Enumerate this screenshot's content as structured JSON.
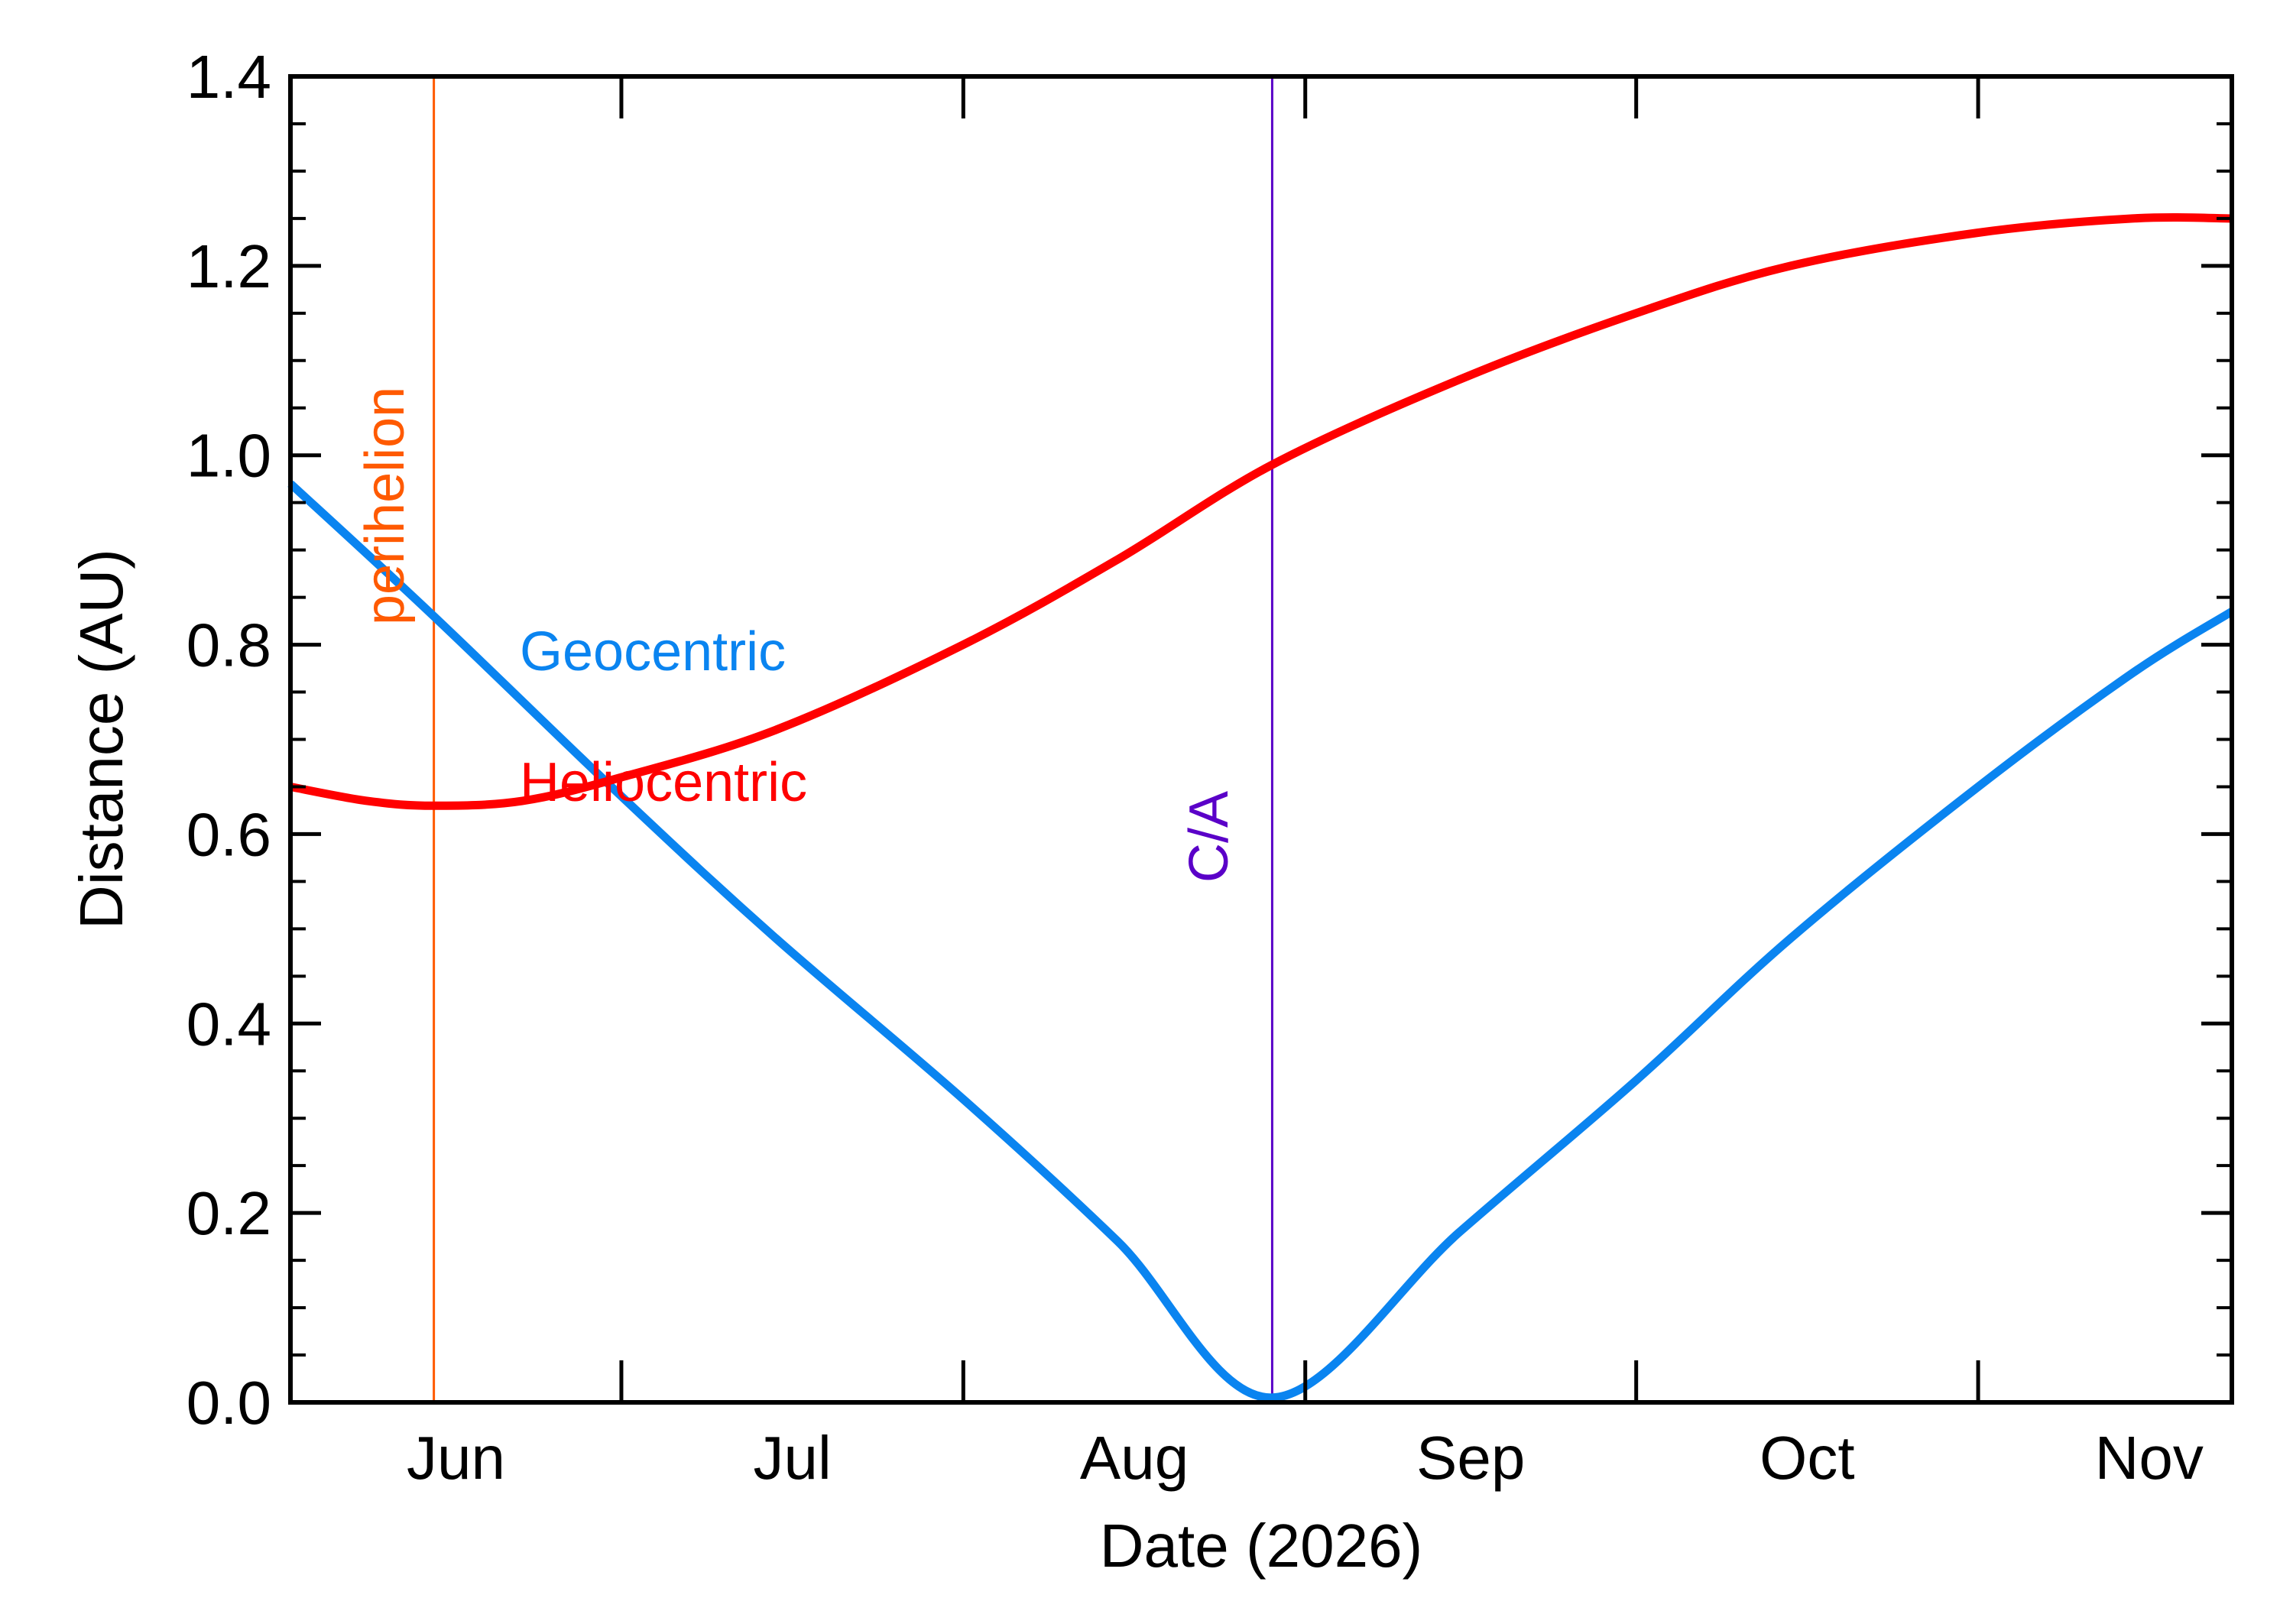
{
  "chart_data": {
    "type": "line",
    "xlabel": "Date (2026)",
    "ylabel": "Distance (AU)",
    "xlim": [
      "2026-06-01",
      "2026-11-24"
    ],
    "ylim": [
      0.0,
      1.4
    ],
    "x_ticks": [
      {
        "date": "2026-06-01",
        "label": "Jun"
      },
      {
        "date": "2026-07-01",
        "label": "Jul"
      },
      {
        "date": "2026-08-01",
        "label": "Aug"
      },
      {
        "date": "2026-09-01",
        "label": "Sep"
      },
      {
        "date": "2026-10-01",
        "label": "Oct"
      },
      {
        "date": "2026-11-01",
        "label": "Nov"
      }
    ],
    "y_ticks": [
      {
        "value": 0.0,
        "label": "0.0"
      },
      {
        "value": 0.2,
        "label": "0.2"
      },
      {
        "value": 0.4,
        "label": "0.4"
      },
      {
        "value": 0.6,
        "label": "0.6"
      },
      {
        "value": 0.8,
        "label": "0.8"
      },
      {
        "value": 1.0,
        "label": "1.0"
      },
      {
        "value": 1.2,
        "label": "1.2"
      },
      {
        "value": 1.4,
        "label": "1.4"
      }
    ],
    "grid": false,
    "series": [
      {
        "name": "Geocentric",
        "color": "#0a84f0",
        "points": [
          {
            "x": "2026-06-01",
            "y": 0.97
          },
          {
            "x": "2026-06-14",
            "y": 0.83
          },
          {
            "x": "2026-07-01",
            "y": 0.64
          },
          {
            "x": "2026-07-15",
            "y": 0.49
          },
          {
            "x": "2026-08-01",
            "y": 0.32
          },
          {
            "x": "2026-08-15",
            "y": 0.17
          },
          {
            "x": "2026-08-29",
            "y": 0.005
          },
          {
            "x": "2026-09-15",
            "y": 0.18
          },
          {
            "x": "2026-10-01",
            "y": 0.34
          },
          {
            "x": "2026-10-15",
            "y": 0.49
          },
          {
            "x": "2026-11-01",
            "y": 0.65
          },
          {
            "x": "2026-11-15",
            "y": 0.77
          },
          {
            "x": "2026-11-24",
            "y": 0.835
          }
        ]
      },
      {
        "name": "Heliocentric",
        "color": "#ff0000",
        "points": [
          {
            "x": "2026-06-01",
            "y": 0.65
          },
          {
            "x": "2026-06-08",
            "y": 0.635
          },
          {
            "x": "2026-06-14",
            "y": 0.63
          },
          {
            "x": "2026-06-22",
            "y": 0.635
          },
          {
            "x": "2026-07-01",
            "y": 0.66
          },
          {
            "x": "2026-07-15",
            "y": 0.71
          },
          {
            "x": "2026-08-01",
            "y": 0.8
          },
          {
            "x": "2026-08-15",
            "y": 0.89
          },
          {
            "x": "2026-08-29",
            "y": 0.99
          },
          {
            "x": "2026-09-15",
            "y": 1.08
          },
          {
            "x": "2026-10-01",
            "y": 1.15
          },
          {
            "x": "2026-10-15",
            "y": 1.2
          },
          {
            "x": "2026-11-01",
            "y": 1.235
          },
          {
            "x": "2026-11-15",
            "y": 1.25
          },
          {
            "x": "2026-11-24",
            "y": 1.25
          }
        ]
      }
    ],
    "annotations": [
      {
        "id": "perihelion",
        "label": "perihelion",
        "date": "2026-06-14",
        "color": "#ff5a00"
      },
      {
        "id": "ca",
        "label": "C/A",
        "date": "2026-08-29",
        "color": "#5a00c8"
      }
    ],
    "series_labels": [
      {
        "text": "Geocentric",
        "color": "#0a84f0"
      },
      {
        "text": "Heliocentric",
        "color": "#ff0000"
      }
    ]
  }
}
